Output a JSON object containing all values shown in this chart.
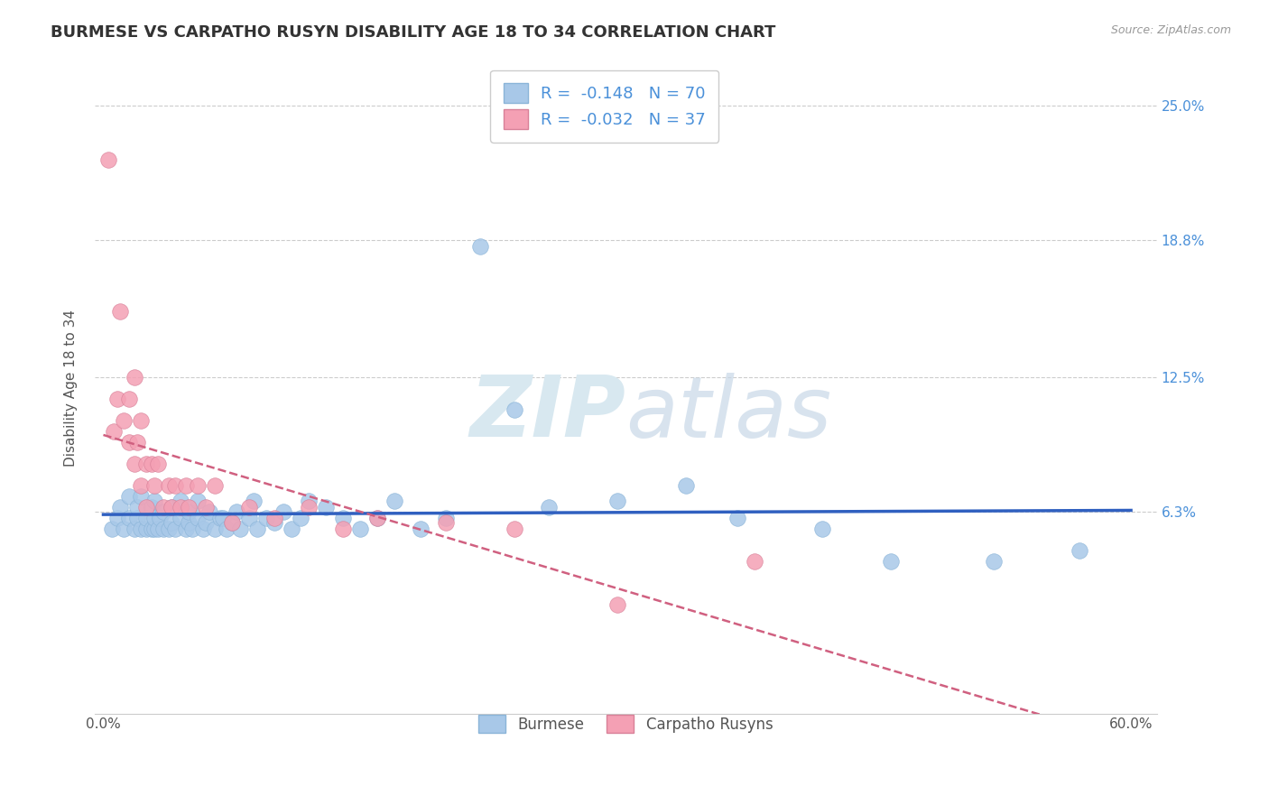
{
  "title": "BURMESE VS CARPATHO RUSYN DISABILITY AGE 18 TO 34 CORRELATION CHART",
  "source": "Source: ZipAtlas.com",
  "xlabel": "",
  "ylabel": "Disability Age 18 to 34",
  "xlim": [
    -0.005,
    0.615
  ],
  "ylim": [
    -0.03,
    0.27
  ],
  "xtick_labels": [
    "0.0%",
    "",
    "",
    "",
    "",
    "",
    "60.0%"
  ],
  "xtick_vals": [
    0.0,
    0.1,
    0.2,
    0.3,
    0.4,
    0.5,
    0.6
  ],
  "ytick_labels": [
    "6.3%",
    "12.5%",
    "18.8%",
    "25.0%"
  ],
  "ytick_vals": [
    0.063,
    0.125,
    0.188,
    0.25
  ],
  "burmese_color": "#A8C8E8",
  "carpatho_color": "#F4A0B4",
  "burmese_line_color": "#3060C0",
  "carpatho_line_color": "#D06080",
  "tick_color": "#4A90D9",
  "burmese_R": -0.148,
  "burmese_N": 70,
  "carpatho_R": -0.032,
  "carpatho_N": 37,
  "legend_label_burmese": "Burmese",
  "legend_label_carpatho": "Carpatho Rusyns",
  "watermark_zip": "ZIP",
  "watermark_atlas": "atlas",
  "title_fontsize": 13,
  "axis_label_fontsize": 11,
  "tick_fontsize": 11,
  "background_color": "#ffffff",
  "grid_color": "#cccccc",
  "burmese_x": [
    0.005,
    0.008,
    0.01,
    0.012,
    0.015,
    0.015,
    0.018,
    0.02,
    0.02,
    0.022,
    0.022,
    0.025,
    0.025,
    0.028,
    0.028,
    0.03,
    0.03,
    0.03,
    0.032,
    0.033,
    0.035,
    0.035,
    0.038,
    0.04,
    0.04,
    0.042,
    0.045,
    0.045,
    0.048,
    0.05,
    0.05,
    0.052,
    0.055,
    0.055,
    0.058,
    0.06,
    0.062,
    0.065,
    0.068,
    0.07,
    0.072,
    0.075,
    0.078,
    0.08,
    0.085,
    0.088,
    0.09,
    0.095,
    0.1,
    0.105,
    0.11,
    0.115,
    0.12,
    0.13,
    0.14,
    0.15,
    0.16,
    0.17,
    0.185,
    0.2,
    0.22,
    0.24,
    0.26,
    0.3,
    0.34,
    0.37,
    0.42,
    0.46,
    0.52,
    0.57
  ],
  "burmese_y": [
    0.055,
    0.06,
    0.065,
    0.055,
    0.06,
    0.07,
    0.055,
    0.06,
    0.065,
    0.055,
    0.07,
    0.055,
    0.06,
    0.065,
    0.055,
    0.055,
    0.06,
    0.068,
    0.055,
    0.06,
    0.055,
    0.063,
    0.055,
    0.058,
    0.065,
    0.055,
    0.06,
    0.068,
    0.055,
    0.058,
    0.063,
    0.055,
    0.06,
    0.068,
    0.055,
    0.058,
    0.063,
    0.055,
    0.06,
    0.06,
    0.055,
    0.058,
    0.063,
    0.055,
    0.06,
    0.068,
    0.055,
    0.06,
    0.058,
    0.063,
    0.055,
    0.06,
    0.068,
    0.065,
    0.06,
    0.055,
    0.06,
    0.068,
    0.055,
    0.06,
    0.185,
    0.11,
    0.065,
    0.068,
    0.075,
    0.06,
    0.055,
    0.04,
    0.04,
    0.045
  ],
  "carpatho_x": [
    0.003,
    0.006,
    0.008,
    0.01,
    0.012,
    0.015,
    0.015,
    0.018,
    0.018,
    0.02,
    0.022,
    0.022,
    0.025,
    0.025,
    0.028,
    0.03,
    0.032,
    0.035,
    0.038,
    0.04,
    0.042,
    0.045,
    0.048,
    0.05,
    0.055,
    0.06,
    0.065,
    0.075,
    0.085,
    0.1,
    0.12,
    0.14,
    0.16,
    0.2,
    0.24,
    0.3,
    0.38
  ],
  "carpatho_y": [
    0.225,
    0.1,
    0.115,
    0.155,
    0.105,
    0.095,
    0.115,
    0.085,
    0.125,
    0.095,
    0.105,
    0.075,
    0.085,
    0.065,
    0.085,
    0.075,
    0.085,
    0.065,
    0.075,
    0.065,
    0.075,
    0.065,
    0.075,
    0.065,
    0.075,
    0.065,
    0.075,
    0.058,
    0.065,
    0.06,
    0.065,
    0.055,
    0.06,
    0.058,
    0.055,
    0.02,
    0.04
  ]
}
